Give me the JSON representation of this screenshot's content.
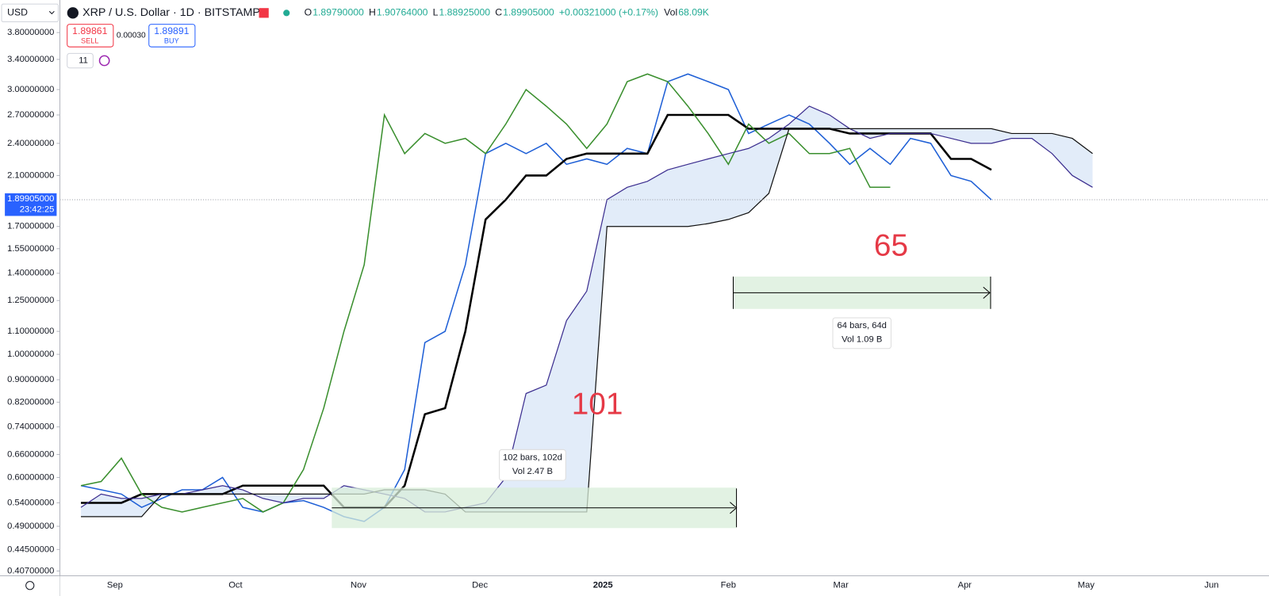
{
  "toolbar": {
    "currency": "USD",
    "symbol": "XRP / U.S. Dollar · 1D · BITSTAMP",
    "ohlc": [
      {
        "label": "O",
        "value": "1.89790000"
      },
      {
        "label": "H",
        "value": "1.90764000"
      },
      {
        "label": "L",
        "value": "1.88925000"
      },
      {
        "label": "C",
        "value": "1.89905000"
      }
    ],
    "change": "+0.00321000 (+0.17%)",
    "volume_label": "Vol",
    "volume": "68.09K"
  },
  "trade": {
    "sell_price": "1.89861",
    "sell": "SELL",
    "spread": "0.00030",
    "buy_price": "1.89891",
    "buy": "BUY",
    "indicators_count": "11"
  },
  "chart_data": {
    "type": "line",
    "log_scale": true,
    "grid": false,
    "ylim": [
      0.399,
      4.35
    ],
    "yticks": [
      {
        "value": 3.8,
        "label": "3.80000000"
      },
      {
        "value": 3.4,
        "label": "3.40000000"
      },
      {
        "value": 3.0,
        "label": "3.00000000"
      },
      {
        "value": 2.7,
        "label": "2.70000000"
      },
      {
        "value": 2.4,
        "label": "2.40000000"
      },
      {
        "value": 2.1,
        "label": "2.10000000"
      },
      {
        "value": 1.7,
        "label": "1.70000000"
      },
      {
        "value": 1.55,
        "label": "1.55000000"
      },
      {
        "value": 1.4,
        "label": "1.40000000"
      },
      {
        "value": 1.25,
        "label": "1.25000000"
      },
      {
        "value": 1.1,
        "label": "1.10000000"
      },
      {
        "value": 1.0,
        "label": "1.00000000"
      },
      {
        "value": 0.9,
        "label": "0.90000000"
      },
      {
        "value": 0.82,
        "label": "0.82000000"
      },
      {
        "value": 0.74,
        "label": "0.74000000"
      },
      {
        "value": 0.66,
        "label": "0.66000000"
      },
      {
        "value": 0.6,
        "label": "0.60000000"
      },
      {
        "value": 0.54,
        "label": "0.54000000"
      },
      {
        "value": 0.49,
        "label": "0.49000000"
      },
      {
        "value": 0.445,
        "label": "0.44500000"
      },
      {
        "value": 0.407,
        "label": "0.40700000"
      }
    ],
    "x_labels": [
      "Sep",
      "Oct",
      "Nov",
      "Dec",
      "2025",
      "Feb",
      "Mar",
      "Apr",
      "May",
      "Jun"
    ],
    "series": [
      {
        "color": "#1e5fd6",
        "width": 1.5,
        "values": [
          0.58,
          0.57,
          0.56,
          0.53,
          0.55,
          0.57,
          0.57,
          0.6,
          0.53,
          0.52,
          0.54,
          0.545,
          0.53,
          0.51,
          0.5,
          0.53,
          0.62,
          1.05,
          1.1,
          1.45,
          2.3,
          2.4,
          2.3,
          2.4,
          2.2,
          2.25,
          2.2,
          2.35,
          2.3,
          3.1,
          3.2,
          3.1,
          3.0,
          2.5,
          2.6,
          2.7,
          2.6,
          2.4,
          2.2,
          2.35,
          2.2,
          2.45,
          2.4,
          2.1,
          2.05,
          1.899,
          null,
          null,
          null,
          null,
          null
        ]
      },
      {
        "color": "#000000",
        "width": 2.5,
        "values": [
          0.54,
          0.54,
          0.54,
          0.56,
          0.56,
          0.56,
          0.56,
          0.56,
          0.58,
          0.58,
          0.58,
          0.58,
          0.58,
          0.53,
          0.53,
          0.53,
          0.58,
          0.78,
          0.8,
          1.1,
          1.75,
          1.9,
          2.1,
          2.1,
          2.25,
          2.3,
          2.3,
          2.3,
          2.3,
          2.7,
          2.7,
          2.7,
          2.7,
          2.55,
          2.55,
          2.55,
          2.55,
          2.55,
          2.5,
          2.5,
          2.5,
          2.5,
          2.5,
          2.25,
          2.25,
          2.15,
          null,
          null,
          null,
          null,
          null
        ]
      },
      {
        "color": "#3a8f2e",
        "width": 1.5,
        "values": [
          0.58,
          0.59,
          0.65,
          0.56,
          0.53,
          0.52,
          0.53,
          0.54,
          0.55,
          0.52,
          0.54,
          0.62,
          0.8,
          1.1,
          1.45,
          2.7,
          2.3,
          2.5,
          2.4,
          2.45,
          2.3,
          2.6,
          3.0,
          2.8,
          2.6,
          2.35,
          2.6,
          3.1,
          3.2,
          3.1,
          2.8,
          2.5,
          2.2,
          2.6,
          2.4,
          2.5,
          2.3,
          2.3,
          2.35,
          2.0,
          2.0,
          null,
          null,
          null,
          null,
          null,
          null,
          null,
          null,
          null,
          null
        ]
      },
      {
        "color": "#3b2d8f",
        "width": 1.2,
        "values": [
          0.53,
          0.56,
          0.55,
          0.55,
          0.56,
          0.56,
          0.57,
          0.58,
          0.57,
          0.55,
          0.54,
          0.55,
          0.55,
          0.58,
          0.57,
          0.56,
          0.55,
          0.52,
          0.52,
          0.53,
          0.54,
          0.6,
          0.85,
          0.88,
          1.15,
          1.3,
          1.9,
          2.0,
          2.05,
          2.15,
          2.2,
          2.25,
          2.3,
          2.35,
          2.45,
          2.6,
          2.8,
          2.7,
          2.55,
          2.45,
          2.5,
          2.5,
          2.5,
          2.45,
          2.4,
          2.4,
          2.45,
          2.45,
          2.3,
          2.1,
          2.0
        ]
      },
      {
        "color": "#111111",
        "width": 1.2,
        "values": [
          0.51,
          0.51,
          0.51,
          0.51,
          0.56,
          0.56,
          0.56,
          0.56,
          0.56,
          0.56,
          0.56,
          0.56,
          0.56,
          0.56,
          0.56,
          0.57,
          0.57,
          0.57,
          0.56,
          0.52,
          0.52,
          0.52,
          0.52,
          0.52,
          0.52,
          0.52,
          1.7,
          1.7,
          1.7,
          1.7,
          1.7,
          1.72,
          1.75,
          1.8,
          1.95,
          2.55,
          2.55,
          2.55,
          2.55,
          2.55,
          2.55,
          2.55,
          2.55,
          2.55,
          2.55,
          2.55,
          2.5,
          2.5,
          2.5,
          2.45,
          2.3
        ]
      }
    ],
    "cloud_fill": "#dde9f8",
    "last_price": {
      "value": 1.89905,
      "label": "1.89905000"
    },
    "countdown": "23:42:25",
    "annotations": [
      "101",
      "65"
    ],
    "measures": [
      {
        "bars": "102 bars, 102d",
        "volume": "Vol 2.47 B"
      },
      {
        "bars": "64 bars, 64d",
        "volume": "Vol 1.09 B"
      }
    ]
  }
}
